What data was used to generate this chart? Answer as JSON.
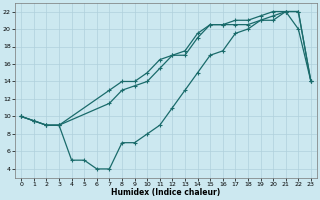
{
  "xlabel": "Humidex (Indice chaleur)",
  "bg_color": "#cce8f0",
  "grid_color": "#b0d0dc",
  "line_color": "#1a6b6b",
  "xlim": [
    -0.5,
    23.5
  ],
  "ylim": [
    3,
    23
  ],
  "xticks": [
    0,
    1,
    2,
    3,
    4,
    5,
    6,
    7,
    8,
    9,
    10,
    11,
    12,
    13,
    14,
    15,
    16,
    17,
    18,
    19,
    20,
    21,
    22,
    23
  ],
  "yticks": [
    4,
    6,
    8,
    10,
    12,
    14,
    16,
    18,
    20,
    22
  ],
  "line_upper_x": [
    0,
    1,
    2,
    3,
    7,
    8,
    9,
    10,
    11,
    12,
    13,
    14,
    15,
    16,
    17,
    18,
    19,
    20,
    21,
    22,
    23
  ],
  "line_upper_y": [
    10,
    9.5,
    9,
    9,
    13,
    14,
    14,
    15,
    16.5,
    17,
    17.5,
    19.5,
    20.5,
    20.5,
    21,
    21,
    21.5,
    22,
    22,
    22,
    14
  ],
  "line_mid_x": [
    0,
    1,
    2,
    3,
    7,
    8,
    9,
    10,
    11,
    12,
    13,
    14,
    15,
    16,
    17,
    18,
    19,
    20,
    21,
    22,
    23
  ],
  "line_mid_y": [
    10,
    9.5,
    9,
    9,
    11.5,
    13,
    13.5,
    14,
    15.5,
    17,
    17,
    19,
    20.5,
    20.5,
    20.5,
    20.5,
    21,
    21.5,
    22,
    22,
    14
  ],
  "line_lower_x": [
    0,
    1,
    2,
    3,
    4,
    5,
    6,
    7,
    8,
    9,
    10,
    11,
    12,
    13,
    14,
    15,
    16,
    17,
    18,
    19,
    20,
    21,
    22,
    23
  ],
  "line_lower_y": [
    10,
    9.5,
    9,
    9,
    5,
    5,
    4,
    4,
    7,
    7,
    8,
    9,
    11,
    13,
    15,
    17,
    17.5,
    19.5,
    20,
    21,
    21,
    22,
    20,
    14
  ]
}
